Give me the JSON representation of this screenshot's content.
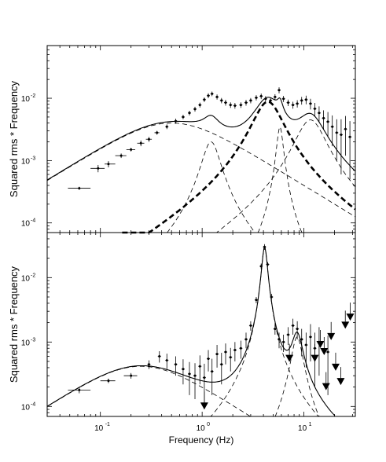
{
  "chart_data": [
    {
      "type": "scatter",
      "panel": "top",
      "title": "",
      "xlabel": "",
      "ylabel": "Squared rms * Frequency",
      "xscale": "log",
      "yscale": "log",
      "xlim": [
        0.03,
        32
      ],
      "ylim": [
        7e-05,
        0.07
      ],
      "ytick_labels": [
        {
          "value": 0.0001,
          "base": "10",
          "exp": "-4"
        },
        {
          "value": 0.001,
          "base": "10",
          "exp": "-3"
        },
        {
          "value": 0.01,
          "base": "10",
          "exp": "-2"
        }
      ],
      "points": [
        {
          "x": 0.062,
          "y": 0.00036,
          "xlo": 0.048,
          "xhi": 0.08,
          "ylo": 0.00034,
          "yhi": 0.00038
        },
        {
          "x": 0.095,
          "y": 0.00075,
          "xlo": 0.08,
          "xhi": 0.11,
          "ylo": 0.00065,
          "yhi": 0.00085
        },
        {
          "x": 0.12,
          "y": 0.00088,
          "xlo": 0.11,
          "xhi": 0.14,
          "ylo": 0.00078,
          "yhi": 0.00098
        },
        {
          "x": 0.16,
          "y": 0.0012,
          "xlo": 0.14,
          "xhi": 0.18,
          "ylo": 0.0011,
          "yhi": 0.0013
        },
        {
          "x": 0.2,
          "y": 0.0015,
          "xlo": 0.18,
          "xhi": 0.22,
          "ylo": 0.0014,
          "yhi": 0.0016
        },
        {
          "x": 0.25,
          "y": 0.0019,
          "xlo": 0.23,
          "xhi": 0.27,
          "ylo": 0.0017,
          "yhi": 0.0021
        },
        {
          "x": 0.3,
          "y": 0.0022,
          "xlo": 0.28,
          "xhi": 0.32,
          "ylo": 0.002,
          "yhi": 0.0024
        },
        {
          "x": 0.36,
          "y": 0.0028,
          "xlo": 0.34,
          "xhi": 0.38,
          "ylo": 0.0026,
          "yhi": 0.003
        },
        {
          "x": 0.45,
          "y": 0.0035,
          "ylo": 0.0032,
          "yhi": 0.0038
        },
        {
          "x": 0.55,
          "y": 0.0043,
          "ylo": 0.0039,
          "yhi": 0.0047
        },
        {
          "x": 0.65,
          "y": 0.005,
          "ylo": 0.0046,
          "yhi": 0.0054
        },
        {
          "x": 0.75,
          "y": 0.0058,
          "ylo": 0.0053,
          "yhi": 0.0063
        },
        {
          "x": 0.85,
          "y": 0.0067,
          "ylo": 0.0061,
          "yhi": 0.0073
        },
        {
          "x": 0.95,
          "y": 0.0078,
          "ylo": 0.0071,
          "yhi": 0.0085
        },
        {
          "x": 1.05,
          "y": 0.0095,
          "ylo": 0.0087,
          "yhi": 0.0103
        },
        {
          "x": 1.15,
          "y": 0.011,
          "ylo": 0.01,
          "yhi": 0.012
        },
        {
          "x": 1.25,
          "y": 0.0118,
          "ylo": 0.0108,
          "yhi": 0.0128
        },
        {
          "x": 1.4,
          "y": 0.0105,
          "ylo": 0.0095,
          "yhi": 0.0115
        },
        {
          "x": 1.55,
          "y": 0.0092,
          "ylo": 0.0083,
          "yhi": 0.0101
        },
        {
          "x": 1.7,
          "y": 0.0085,
          "ylo": 0.0076,
          "yhi": 0.0094
        },
        {
          "x": 1.9,
          "y": 0.0078,
          "ylo": 0.007,
          "yhi": 0.0086
        },
        {
          "x": 2.1,
          "y": 0.0076,
          "ylo": 0.0068,
          "yhi": 0.0084
        },
        {
          "x": 2.4,
          "y": 0.0078,
          "ylo": 0.007,
          "yhi": 0.0086
        },
        {
          "x": 2.7,
          "y": 0.0085,
          "ylo": 0.0076,
          "yhi": 0.0094
        },
        {
          "x": 3.0,
          "y": 0.0092,
          "ylo": 0.0083,
          "yhi": 0.0101
        },
        {
          "x": 3.4,
          "y": 0.0102,
          "ylo": 0.0092,
          "yhi": 0.0112
        },
        {
          "x": 3.8,
          "y": 0.0108,
          "ylo": 0.0097,
          "yhi": 0.0119
        },
        {
          "x": 4.2,
          "y": 0.0098,
          "ylo": 0.0088,
          "yhi": 0.0108
        },
        {
          "x": 4.7,
          "y": 0.0092,
          "ylo": 0.0082,
          "yhi": 0.0102
        },
        {
          "x": 5.2,
          "y": 0.0105,
          "ylo": 0.0094,
          "yhi": 0.0116
        },
        {
          "x": 5.7,
          "y": 0.0135,
          "ylo": 0.012,
          "yhi": 0.015
        },
        {
          "x": 6.3,
          "y": 0.0098,
          "ylo": 0.0087,
          "yhi": 0.0109
        },
        {
          "x": 7.0,
          "y": 0.0085,
          "ylo": 0.0075,
          "yhi": 0.0095
        },
        {
          "x": 7.8,
          "y": 0.0078,
          "ylo": 0.0068,
          "yhi": 0.0088
        },
        {
          "x": 8.6,
          "y": 0.0082,
          "ylo": 0.0071,
          "yhi": 0.0093
        },
        {
          "x": 9.5,
          "y": 0.0092,
          "ylo": 0.0079,
          "yhi": 0.0105
        },
        {
          "x": 10.5,
          "y": 0.0095,
          "ylo": 0.008,
          "yhi": 0.011
        },
        {
          "x": 11.6,
          "y": 0.0082,
          "ylo": 0.0066,
          "yhi": 0.0098
        },
        {
          "x": 12.8,
          "y": 0.0068,
          "ylo": 0.0052,
          "yhi": 0.0084
        },
        {
          "x": 14.1,
          "y": 0.0058,
          "ylo": 0.0042,
          "yhi": 0.0074
        },
        {
          "x": 15.6,
          "y": 0.0048,
          "ylo": 0.0032,
          "yhi": 0.0064
        },
        {
          "x": 17.2,
          "y": 0.0042,
          "ylo": 0.0024,
          "yhi": 0.006
        },
        {
          "x": 19.0,
          "y": 0.0035,
          "ylo": 0.0017,
          "yhi": 0.0053
        },
        {
          "x": 21.0,
          "y": 0.0028,
          "ylo": 0.001,
          "yhi": 0.0046
        },
        {
          "x": 23.2,
          "y": 0.0026,
          "ylo": 0.0006,
          "yhi": 0.0046
        },
        {
          "x": 25.6,
          "y": 0.0032,
          "ylo": 0.0012,
          "yhi": 0.0052
        },
        {
          "x": 28.3,
          "y": 0.0024,
          "ylo": 0.0005,
          "yhi": 0.0043
        }
      ],
      "components": [
        {
          "f0": 0.0,
          "peak_x": 0.5,
          "peak_y": 0.004,
          "q": 0.5,
          "style": "thin-dashed"
        },
        {
          "f0": 1.2,
          "peak_x": 1.2,
          "peak_y": 0.002,
          "q": 2.5,
          "style": "thin-dashed"
        },
        {
          "f0": 4.2,
          "peak_x": 4.2,
          "peak_y": 0.0088,
          "q": 1.5,
          "style": "thick-dashed"
        },
        {
          "f0": 5.8,
          "peak_x": 5.8,
          "peak_y": 0.0035,
          "q": 7.0,
          "style": "thin-dashed"
        },
        {
          "f0": 11.0,
          "peak_x": 11.0,
          "peak_y": 0.0045,
          "q": 1.5,
          "style": "thin-dashed"
        }
      ]
    },
    {
      "type": "scatter",
      "panel": "bottom",
      "title": "",
      "xlabel": "Frequency (Hz)",
      "ylabel": "Squared rms * Frequency",
      "xscale": "log",
      "yscale": "log",
      "xlim": [
        0.03,
        32
      ],
      "ylim": [
        7e-05,
        0.05
      ],
      "xtick_labels": [
        {
          "value": 0.1,
          "base": "10",
          "exp": "-1"
        },
        {
          "value": 1,
          "base": "10",
          "exp": "0"
        },
        {
          "value": 10,
          "base": "10",
          "exp": "1"
        }
      ],
      "ytick_labels": [
        {
          "value": 0.0001,
          "base": "10",
          "exp": "-4"
        },
        {
          "value": 0.001,
          "base": "10",
          "exp": "-3"
        },
        {
          "value": 0.01,
          "base": "10",
          "exp": "-2"
        }
      ],
      "points": [
        {
          "x": 0.062,
          "y": 0.00018,
          "xlo": 0.048,
          "xhi": 0.08,
          "ylo": 0.00016,
          "yhi": 0.0002
        },
        {
          "x": 0.12,
          "y": 0.00025,
          "xlo": 0.1,
          "xhi": 0.14,
          "ylo": 0.00023,
          "yhi": 0.00027
        },
        {
          "x": 0.2,
          "y": 0.0003,
          "xlo": 0.17,
          "xhi": 0.23,
          "ylo": 0.00027,
          "yhi": 0.00033
        },
        {
          "x": 0.3,
          "y": 0.00045,
          "ylo": 0.00038,
          "yhi": 0.00052
        },
        {
          "x": 0.38,
          "y": 0.0006,
          "ylo": 0.00048,
          "yhi": 0.00072
        },
        {
          "x": 0.45,
          "y": 0.00052,
          "ylo": 0.00038,
          "yhi": 0.00066
        },
        {
          "x": 0.55,
          "y": 0.00045,
          "ylo": 0.0003,
          "yhi": 0.0006
        },
        {
          "x": 0.65,
          "y": 0.00038,
          "ylo": 0.00022,
          "yhi": 0.00054
        },
        {
          "x": 0.75,
          "y": 0.00032,
          "ylo": 0.00015,
          "yhi": 0.00049
        },
        {
          "x": 0.85,
          "y": 0.0003,
          "ylo": 0.00013,
          "yhi": 0.00047
        },
        {
          "x": 0.95,
          "y": 0.00042,
          "ylo": 0.00022,
          "yhi": 0.00062
        },
        {
          "x": 1.05,
          "y": 0.00028,
          "ylo": 0.0001,
          "yhi": 0.00046
        },
        {
          "x": 1.15,
          "y": 0.00055,
          "ylo": 0.00035,
          "yhi": 0.00075
        },
        {
          "x": 1.25,
          "y": 0.00035,
          "ylo": 0.00015,
          "yhi": 0.00055
        },
        {
          "x": 1.4,
          "y": 0.00065,
          "ylo": 0.0004,
          "yhi": 0.0009
        },
        {
          "x": 1.55,
          "y": 0.00045,
          "ylo": 0.00022,
          "yhi": 0.00068
        },
        {
          "x": 1.7,
          "y": 0.0007,
          "ylo": 0.00045,
          "yhi": 0.00095
        },
        {
          "x": 1.9,
          "y": 0.00058,
          "ylo": 0.00035,
          "yhi": 0.00081
        },
        {
          "x": 2.1,
          "y": 0.00075,
          "ylo": 0.0005,
          "yhi": 0.001
        },
        {
          "x": 2.4,
          "y": 0.0008,
          "ylo": 0.00055,
          "yhi": 0.00105
        },
        {
          "x": 2.7,
          "y": 0.0011,
          "ylo": 0.0008,
          "yhi": 0.0014
        },
        {
          "x": 3.0,
          "y": 0.0018,
          "ylo": 0.0015,
          "yhi": 0.0021
        },
        {
          "x": 3.4,
          "y": 0.0045,
          "ylo": 0.004,
          "yhi": 0.005
        },
        {
          "x": 3.8,
          "y": 0.015,
          "ylo": 0.0135,
          "yhi": 0.0165
        },
        {
          "x": 4.1,
          "y": 0.03,
          "ylo": 0.027,
          "yhi": 0.033
        },
        {
          "x": 4.4,
          "y": 0.016,
          "ylo": 0.0145,
          "yhi": 0.0175
        },
        {
          "x": 4.8,
          "y": 0.005,
          "ylo": 0.0044,
          "yhi": 0.0056
        },
        {
          "x": 5.2,
          "y": 0.0016,
          "ylo": 0.0013,
          "yhi": 0.0019
        },
        {
          "x": 5.7,
          "y": 0.0011,
          "ylo": 0.0008,
          "yhi": 0.0014
        },
        {
          "x": 6.3,
          "y": 0.001,
          "ylo": 0.0007,
          "yhi": 0.0013
        },
        {
          "x": 7.0,
          "y": 0.0013,
          "ylo": 0.0009,
          "yhi": 0.0017
        },
        {
          "x": 7.8,
          "y": 0.0018,
          "ylo": 0.0013,
          "yhi": 0.0023
        },
        {
          "x": 8.6,
          "y": 0.0016,
          "ylo": 0.0011,
          "yhi": 0.0021
        },
        {
          "x": 9.5,
          "y": 0.0011,
          "ylo": 0.0006,
          "yhi": 0.0016
        },
        {
          "x": 10.5,
          "y": 0.0009,
          "ylo": 0.0004,
          "yhi": 0.0014
        },
        {
          "x": 11.6,
          "y": 0.0012,
          "ylo": 0.0005,
          "yhi": 0.0019
        },
        {
          "x": 12.8,
          "y": 0.0008,
          "ylo": 0.0002,
          "yhi": 0.0014
        },
        {
          "x": 14.1,
          "y": 0.001,
          "ylo": 0.0003,
          "yhi": 0.0017
        },
        {
          "x": 17.2,
          "y": 0.0007,
          "ylo": 0.00015,
          "yhi": 0.00125
        }
      ],
      "upper_limits": [
        {
          "x": 1.05,
          "y": 0.0001
        },
        {
          "x": 7.2,
          "y": 0.00055
        },
        {
          "x": 12.8,
          "y": 0.00055
        },
        {
          "x": 14.5,
          "y": 0.0009
        },
        {
          "x": 15.8,
          "y": 0.0007
        },
        {
          "x": 16.5,
          "y": 0.0002
        },
        {
          "x": 18.5,
          "y": 0.0012
        },
        {
          "x": 20.5,
          "y": 0.0004
        },
        {
          "x": 23.0,
          "y": 0.00024
        },
        {
          "x": 25.5,
          "y": 0.0018
        },
        {
          "x": 28.5,
          "y": 0.0024
        }
      ],
      "components": [
        {
          "f0": 0.0,
          "peak_x": 0.25,
          "peak_y": 0.00042,
          "q": 0.5,
          "style": "thin-dashed"
        },
        {
          "f0": 4.1,
          "peak_x": 4.1,
          "peak_y": 0.03,
          "q": 8.0,
          "style": "thin-dashed"
        },
        {
          "f0": 8.5,
          "peak_x": 8.5,
          "peak_y": 0.0012,
          "q": 4.0,
          "style": "thin-dashed"
        }
      ]
    }
  ]
}
